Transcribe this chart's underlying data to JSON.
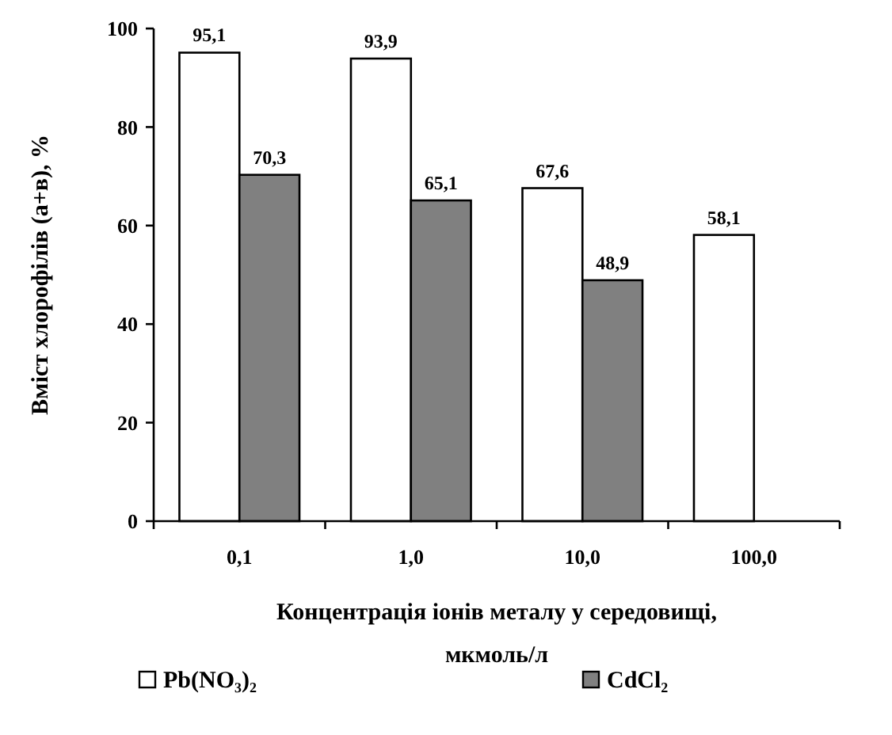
{
  "chart_data": {
    "type": "bar",
    "xlabel": "Концентрація іонів металу у середовищі,\nмкмоль/л",
    "ylabel": "Вміст хлорофілів (а+в),  %",
    "categories": [
      "0,1",
      "1,0",
      "10,0",
      "100,0"
    ],
    "series": [
      {
        "name": "Pb(NO₃)₂",
        "color": "#ffffff",
        "values": [
          95.1,
          93.9,
          67.6,
          58.1
        ],
        "value_labels": [
          "95,1",
          "93,9",
          "67,6",
          "58,1"
        ]
      },
      {
        "name": "CdCl₂",
        "color": "#808080",
        "values": [
          70.3,
          65.1,
          48.9,
          null
        ],
        "value_labels": [
          "70,3",
          "65,1",
          "48,9",
          null
        ]
      }
    ],
    "ylim": [
      0,
      100
    ],
    "yticks": [
      0,
      20,
      40,
      60,
      80,
      100
    ],
    "grid": false,
    "legend": "bottom"
  }
}
